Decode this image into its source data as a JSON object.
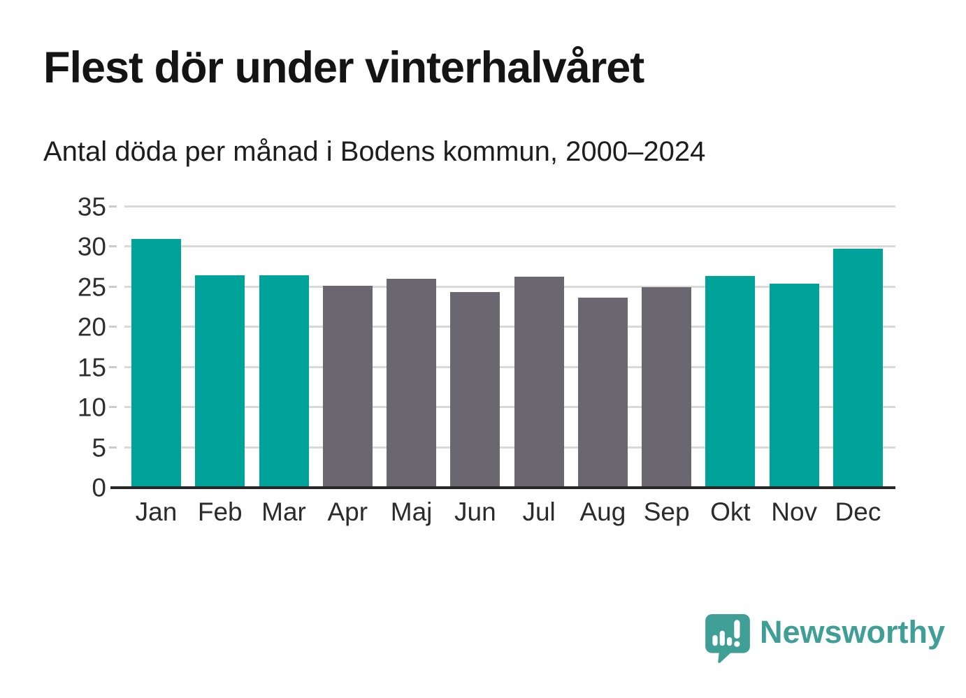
{
  "header": {
    "title": "Flest dör under vinterhalvåret",
    "subtitle": "Antal döda per månad i Bodens kommun, 2000–2024"
  },
  "chart_data": {
    "type": "bar",
    "title": "Flest dör under vinterhalvåret",
    "subtitle": "Antal döda per månad i Bodens kommun, 2000–2024",
    "categories": [
      "Jan",
      "Feb",
      "Mar",
      "Apr",
      "Maj",
      "Jun",
      "Jul",
      "Aug",
      "Sep",
      "Okt",
      "Nov",
      "Dec"
    ],
    "values": [
      31,
      26.5,
      26.5,
      25.2,
      26,
      24.4,
      26.3,
      23.7,
      25,
      26.4,
      25.4,
      29.8
    ],
    "bar_colors": [
      "highlight",
      "highlight",
      "highlight",
      "base",
      "base",
      "base",
      "base",
      "base",
      "base",
      "highlight",
      "highlight",
      "highlight"
    ],
    "colors": {
      "highlight": "#00a39a",
      "base": "#6b6770"
    },
    "xlabel": "",
    "ylabel": "",
    "ylim": [
      0,
      35
    ],
    "yticks": [
      0,
      5,
      10,
      15,
      20,
      25,
      30,
      35
    ],
    "grid": true,
    "legend": false
  },
  "footer": {
    "brand": "Newsworthy",
    "logo_color": "#3f9f97"
  }
}
